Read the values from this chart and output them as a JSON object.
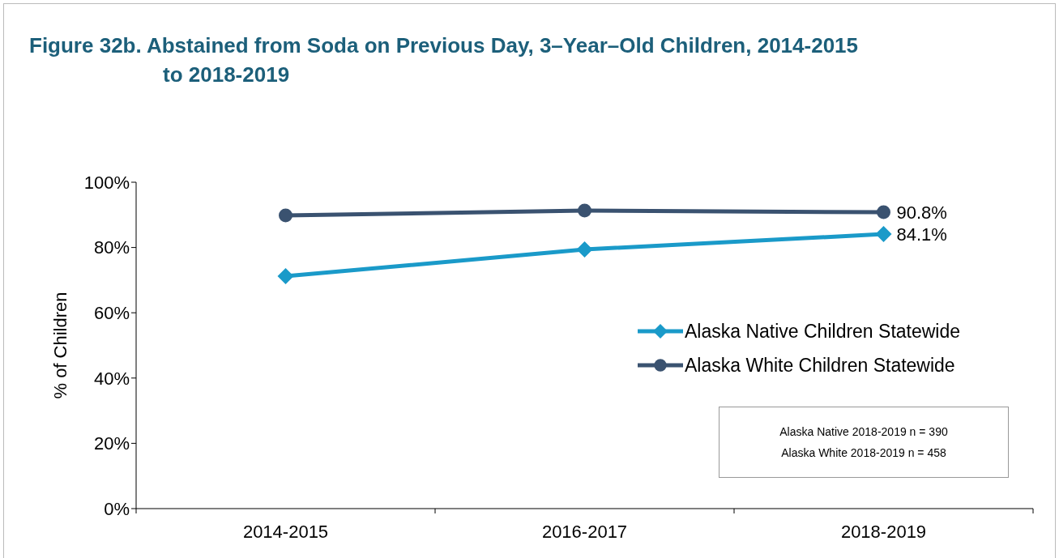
{
  "chart_data": {
    "type": "line",
    "title": "Figure 32b. Abstained from Soda on Previous Day, 3–Year–Old Children, 2014-2015 to 2018-2019",
    "ylabel": "% of Children",
    "categories": [
      "2014-2015",
      "2016-2017",
      "2018-2019"
    ],
    "series": [
      {
        "name": "Alaska Native Children Statewide",
        "color": "#1a9ac9",
        "marker": "diamond",
        "values": [
          71.2,
          79.4,
          84.1
        ],
        "value_labels": [
          null,
          null,
          "84.1%"
        ]
      },
      {
        "name": "Alaska White Children Statewide",
        "color": "#3a5270",
        "marker": "circle",
        "values": [
          89.8,
          91.3,
          90.8
        ],
        "value_labels": [
          null,
          null,
          "90.8%"
        ]
      }
    ],
    "ylim": [
      0,
      100
    ],
    "yticks": [
      {
        "value": 0,
        "label": "0%"
      },
      {
        "value": 20,
        "label": "20%"
      },
      {
        "value": 40,
        "label": "40%"
      },
      {
        "value": 60,
        "label": "60%"
      },
      {
        "value": 80,
        "label": "80%"
      },
      {
        "value": 100,
        "label": "100%"
      }
    ],
    "grid": false,
    "legend": "right",
    "annotations": [
      "Alaska Native 2018-2019 n = 390",
      "Alaska White 2018-2019 n = 458"
    ]
  }
}
